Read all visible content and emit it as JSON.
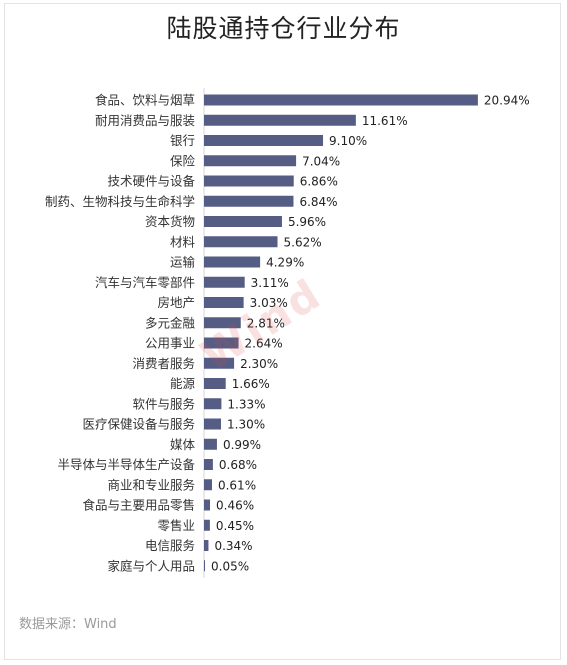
{
  "chart_data": {
    "type": "bar",
    "orientation": "horizontal",
    "title": "陆股通持仓行业分布",
    "categories": [
      "食品、饮料与烟草",
      "耐用消费品与服装",
      "银行",
      "保险",
      "技术硬件与设备",
      "制药、生物科技与生命科学",
      "资本货物",
      "材料",
      "运输",
      "汽车与汽车零部件",
      "房地产",
      "多元金融",
      "公用事业",
      "消费者服务",
      "能源",
      "软件与服务",
      "医疗保健设备与服务",
      "媒体",
      "半导体与半导体生产设备",
      "商业和专业服务",
      "食品与主要用品零售",
      "零售业",
      "电信服务",
      "家庭与个人用品"
    ],
    "values": [
      20.94,
      11.61,
      9.1,
      7.04,
      6.86,
      6.84,
      5.96,
      5.62,
      4.29,
      3.11,
      3.03,
      2.81,
      2.64,
      2.3,
      1.66,
      1.33,
      1.3,
      0.99,
      0.68,
      0.61,
      0.46,
      0.45,
      0.34,
      0.05
    ],
    "value_labels": [
      "20.94%",
      "11.61%",
      "9.10%",
      "7.04%",
      "6.86%",
      "6.84%",
      "5.96%",
      "5.62%",
      "4.29%",
      "3.11%",
      "3.03%",
      "2.81%",
      "2.64%",
      "2.30%",
      "1.66%",
      "1.33%",
      "1.30%",
      "0.99%",
      "0.68%",
      "0.61%",
      "0.46%",
      "0.45%",
      "0.34%",
      "0.05%"
    ],
    "unit": "%",
    "bar_color": "#565d85",
    "grid": false,
    "legend": "none"
  },
  "source": "数据来源：Wind",
  "watermark": "Wind"
}
